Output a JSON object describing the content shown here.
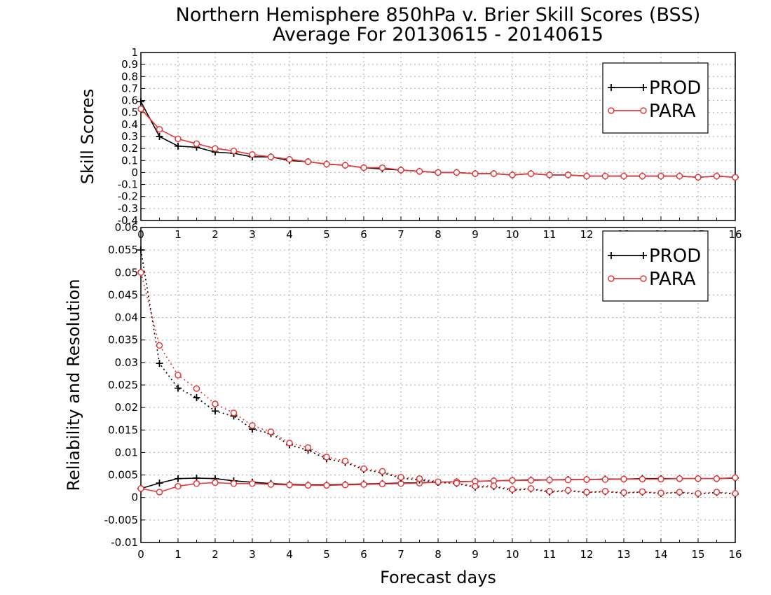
{
  "title": {
    "line1": "Northern Hemisphere 850hPa v. Brier Skill Scores (BSS)",
    "line2": "Average For 20130615 - 20140615"
  },
  "xlabel": "Forecast days",
  "colors": {
    "prod": "#000000",
    "para": "#e8383a"
  },
  "chart_data": [
    {
      "type": "line",
      "ylabel": "Skill Scores",
      "xlim": [
        0,
        16
      ],
      "ylim": [
        -0.4,
        1
      ],
      "xticks": [
        "0",
        "1",
        "2",
        "3",
        "4",
        "5",
        "6",
        "7",
        "8",
        "9",
        "10",
        "11",
        "12",
        "13",
        "14",
        "15",
        "16"
      ],
      "yticks": [
        "-0.4",
        "-0.3",
        "-0.2",
        "-0.1",
        "0",
        "0.1",
        "0.2",
        "0.3",
        "0.4",
        "0.5",
        "0.6",
        "0.7",
        "0.8",
        "0.9",
        "1"
      ],
      "ytick_values": [
        -0.4,
        -0.3,
        -0.2,
        -0.1,
        0,
        0.1,
        0.2,
        0.3,
        0.4,
        0.5,
        0.6,
        0.7,
        0.8,
        0.9,
        1
      ],
      "grid": true,
      "legend_position": "top-right",
      "x": [
        0,
        0.5,
        1,
        1.5,
        2,
        2.5,
        3,
        3.5,
        4,
        4.5,
        5,
        5.5,
        6,
        6.5,
        7,
        7.5,
        8,
        8.5,
        9,
        9.5,
        10,
        10.5,
        11,
        11.5,
        12,
        12.5,
        13,
        13.5,
        14,
        14.5,
        15,
        15.5,
        16
      ],
      "series": [
        {
          "name": "PROD",
          "marker": "plus",
          "style": "solid",
          "values": [
            0.59,
            0.3,
            0.22,
            0.21,
            0.17,
            0.16,
            0.13,
            0.13,
            0.1,
            0.09,
            0.07,
            0.06,
            0.04,
            0.03,
            0.02,
            0.01,
            0.0,
            0.0,
            -0.01,
            -0.01,
            -0.02,
            -0.01,
            -0.02,
            -0.02,
            -0.03,
            -0.03,
            -0.03,
            -0.03,
            -0.03,
            -0.03,
            -0.04,
            -0.03,
            -0.04
          ]
        },
        {
          "name": "PARA",
          "marker": "circle",
          "style": "solid",
          "values": [
            0.53,
            0.36,
            0.28,
            0.24,
            0.2,
            0.18,
            0.15,
            0.13,
            0.11,
            0.09,
            0.07,
            0.06,
            0.04,
            0.04,
            0.02,
            0.01,
            0.0,
            0.0,
            -0.01,
            -0.01,
            -0.02,
            -0.01,
            -0.02,
            -0.02,
            -0.03,
            -0.03,
            -0.03,
            -0.03,
            -0.03,
            -0.03,
            -0.04,
            -0.03,
            -0.04
          ]
        }
      ]
    },
    {
      "type": "line",
      "ylabel": "Reliability and Resolution",
      "xlim": [
        0,
        16
      ],
      "ylim": [
        -0.01,
        0.06
      ],
      "xticks": [
        "0",
        "1",
        "2",
        "3",
        "4",
        "5",
        "6",
        "7",
        "8",
        "9",
        "10",
        "11",
        "12",
        "13",
        "14",
        "15",
        "16"
      ],
      "yticks": [
        "-0.01",
        "-0.005",
        "0",
        "0.005",
        "0.01",
        "0.015",
        "0.02",
        "0.025",
        "0.03",
        "0.035",
        "0.04",
        "0.045",
        "0.05",
        "0.055",
        "0.06"
      ],
      "ytick_values": [
        -0.01,
        -0.005,
        0,
        0.005,
        0.01,
        0.015,
        0.02,
        0.025,
        0.03,
        0.035,
        0.04,
        0.045,
        0.05,
        0.055,
        0.06
      ],
      "grid": true,
      "legend_position": "top-right",
      "x": [
        0,
        0.5,
        1,
        1.5,
        2,
        2.5,
        3,
        3.5,
        4,
        4.5,
        5,
        5.5,
        6,
        6.5,
        7,
        7.5,
        8,
        8.5,
        9,
        9.5,
        10,
        10.5,
        11,
        11.5,
        12,
        12.5,
        13,
        13.5,
        14,
        14.5,
        15,
        15.5,
        16
      ],
      "series": [
        {
          "name": "PROD",
          "marker": "plus",
          "style": "solid",
          "values": [
            0.002,
            0.0032,
            0.0042,
            0.0043,
            0.0042,
            0.0037,
            0.0034,
            0.0031,
            0.0029,
            0.0028,
            0.0028,
            0.0029,
            0.003,
            0.0031,
            0.0032,
            0.0033,
            0.0034,
            0.0035,
            0.0036,
            0.0037,
            0.0038,
            0.0039,
            0.0039,
            0.004,
            0.004,
            0.0041,
            0.0041,
            0.0042,
            0.0042,
            0.0042,
            0.0042,
            0.0042,
            0.0043
          ]
        },
        {
          "name": "PARA",
          "marker": "circle",
          "style": "solid",
          "values": [
            0.002,
            0.0012,
            0.0025,
            0.0031,
            0.0033,
            0.0031,
            0.0031,
            0.0029,
            0.0028,
            0.0027,
            0.0027,
            0.0028,
            0.0029,
            0.003,
            0.0031,
            0.0032,
            0.0034,
            0.0035,
            0.0036,
            0.0037,
            0.0038,
            0.0038,
            0.0039,
            0.0039,
            0.004,
            0.004,
            0.0041,
            0.0041,
            0.0041,
            0.0042,
            0.0042,
            0.0042,
            0.0044
          ]
        },
        {
          "name": "PROD",
          "marker": "plus",
          "style": "dotted",
          "values": [
            0.055,
            0.0298,
            0.0243,
            0.0222,
            0.0192,
            0.0181,
            0.0152,
            0.0142,
            0.0117,
            0.0105,
            0.0086,
            0.0078,
            0.0062,
            0.0055,
            0.0043,
            0.0039,
            0.0034,
            0.0031,
            0.0023,
            0.0024,
            0.0016,
            0.0019,
            0.0012,
            0.0015,
            0.0011,
            0.0013,
            0.001,
            0.0012,
            0.0009,
            0.0011,
            0.0008,
            0.0011,
            0.0008
          ]
        },
        {
          "name": "PARA",
          "marker": "circle",
          "style": "dotted",
          "values": [
            0.05,
            0.0338,
            0.0272,
            0.0242,
            0.0208,
            0.0188,
            0.016,
            0.0146,
            0.0121,
            0.0111,
            0.009,
            0.0081,
            0.0064,
            0.0058,
            0.0045,
            0.0042,
            0.0035,
            0.0032,
            0.0025,
            0.0026,
            0.0018,
            0.002,
            0.0014,
            0.0016,
            0.0012,
            0.0014,
            0.0011,
            0.0013,
            0.001,
            0.0012,
            0.0009,
            0.0012,
            0.0009
          ]
        }
      ]
    }
  ]
}
